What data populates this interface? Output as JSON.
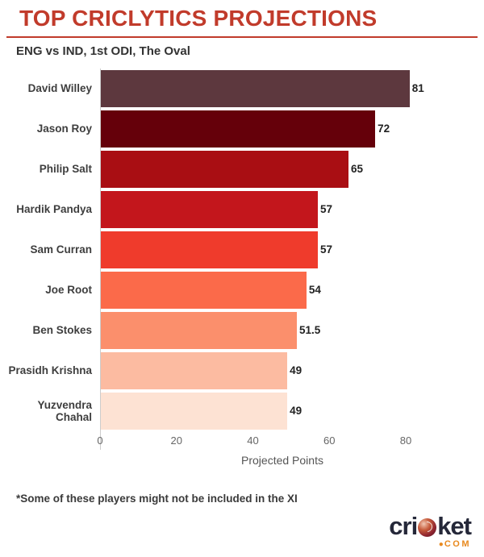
{
  "header": {
    "title": "TOP CRICLYTICS PROJECTIONS",
    "subtitle": "ENG vs IND, 1st ODI, The Oval"
  },
  "chart_data": {
    "type": "bar",
    "orientation": "horizontal",
    "title": "TOP CRICLYTICS PROJECTIONS",
    "subtitle": "ENG vs IND, 1st ODI, The Oval",
    "categories": [
      "David Willey",
      "Jason Roy",
      "Philip Salt",
      "Hardik Pandya",
      "Sam Curran",
      "Joe Root",
      "Ben Stokes",
      "Prasidh Krishna",
      "Yuzvendra Chahal"
    ],
    "values": [
      81,
      72,
      65,
      57,
      57,
      54,
      51.5,
      49,
      49
    ],
    "value_labels": [
      "81",
      "72",
      "65",
      "57",
      "57",
      "54",
      "51.5",
      "49",
      "49"
    ],
    "bar_colors": [
      "#5D383E",
      "#65000A",
      "#A90E13",
      "#C3161C",
      "#EF3B2C",
      "#FB6A4A",
      "#FB8F6C",
      "#FCBBA1",
      "#FDE2D3"
    ],
    "xlabel": "Projected Points",
    "ylabel": "",
    "x_ticks": [
      0,
      20,
      40,
      60,
      80
    ],
    "xlim": [
      0,
      95
    ],
    "grid": false,
    "legend": false
  },
  "footnote": "*Some of these players might not be included in the XI",
  "logo": {
    "word_prefix": "cri",
    "word_suffix": "ket",
    "dot": "●",
    "tld": "COM"
  },
  "colors": {
    "title_red": "#C13B2B",
    "axis_line": "#cccccc",
    "logo_navy": "#252839",
    "logo_orange": "#E8891E"
  }
}
